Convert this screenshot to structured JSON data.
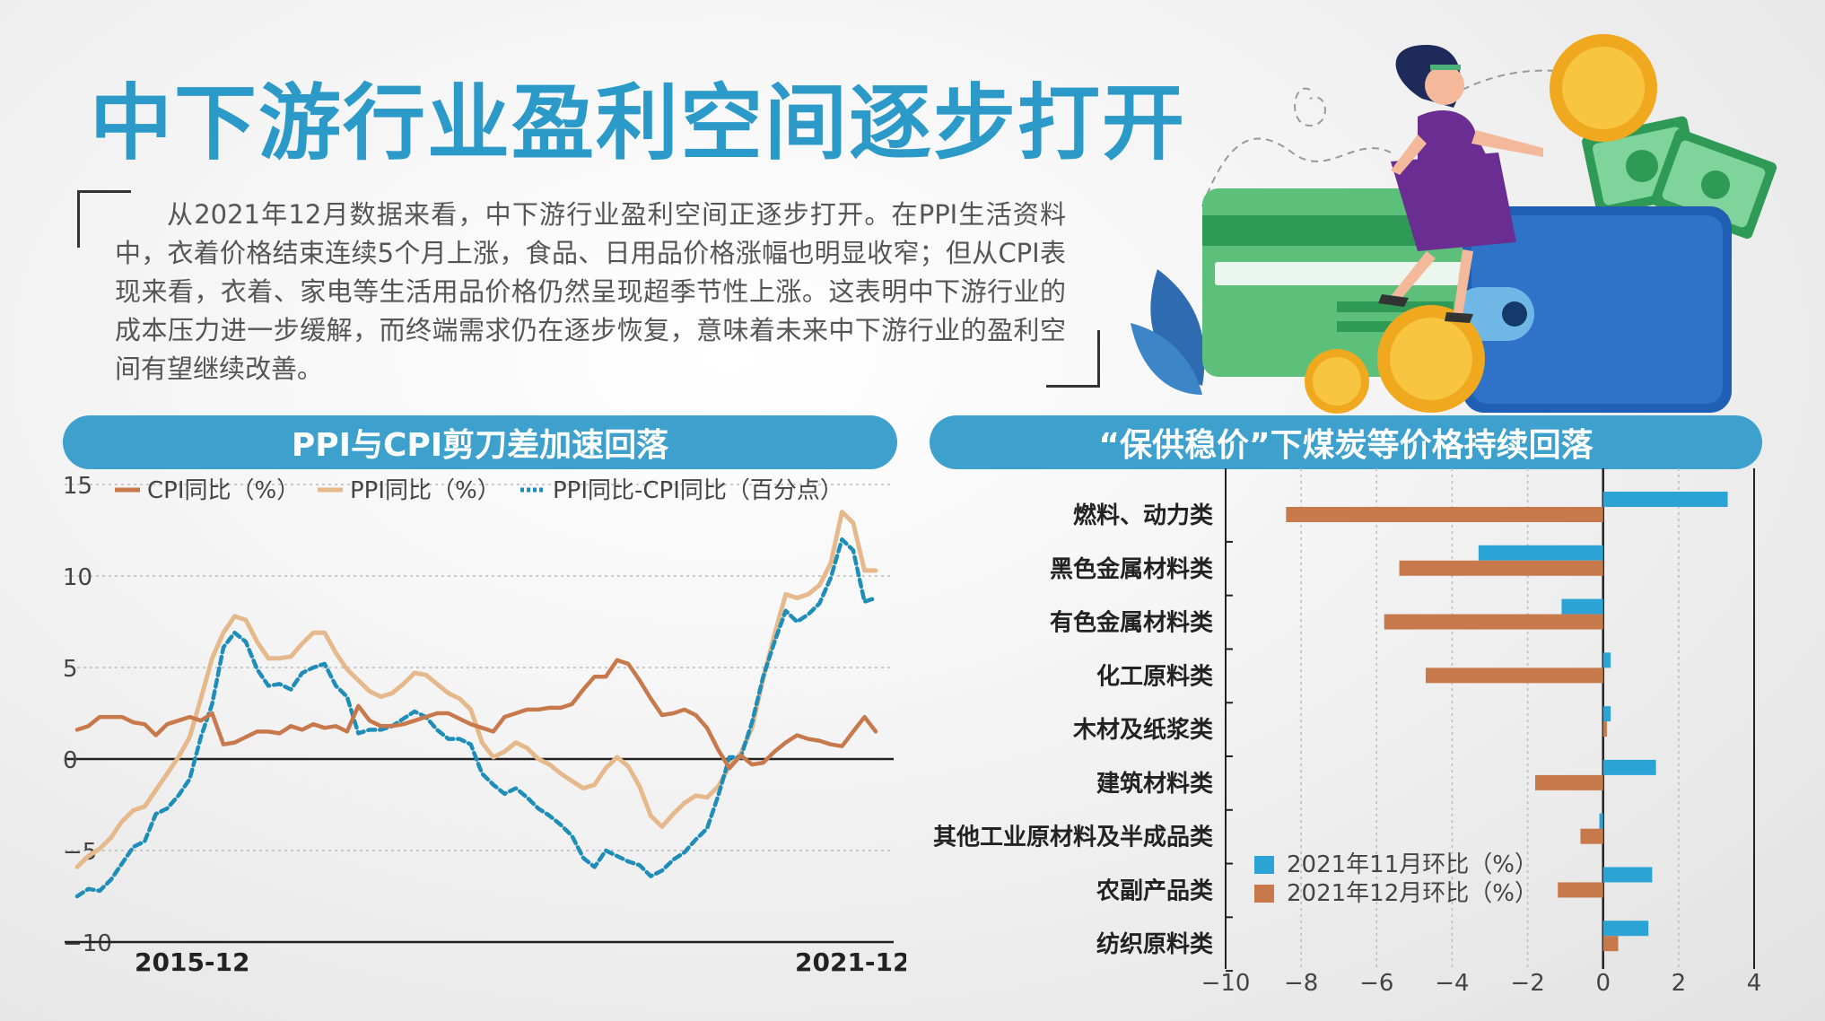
{
  "title": "中下游行业盈利空间逐步打开",
  "intro": "从2021年12月数据来看，中下游行业盈利空间正逐步打开。在PPI生活资料中，衣着价格结束连续5个月上涨，食品、日用品价格涨幅也明显收窄；但从CPI表现来看，衣着、家电等生活用品价格仍然呈现超季节性上涨。这表明中下游行业的成本压力进一步缓解，而终端需求仍在逐步恢复，意味着未来中下游行业的盈利空间有望继续改善。",
  "left_panel": {
    "title": "PPI与CPI剪刀差加速回落"
  },
  "right_panel": {
    "title": "“保供稳价”下煤炭等价格持续回落"
  },
  "colors": {
    "cpi": "#c8794b",
    "ppi": "#e6b98c",
    "diff": "#1e8db8",
    "nov": "#2ba3d4",
    "dec": "#c8794b",
    "accent": "#3ea1cd"
  },
  "chart_data": [
    {
      "type": "line",
      "title": "PPI与CPI剪刀差加速回落",
      "x_start_label": "2015-12",
      "x_end_label": "2021-12",
      "ylim": [
        -10,
        15
      ],
      "yticks": [
        15,
        10,
        5,
        0,
        -5,
        -10
      ],
      "grid": true,
      "legend_position": "top",
      "series": [
        {
          "name": "CPI同比（%）",
          "style": "solid",
          "values": [
            1.6,
            1.8,
            2.3,
            2.3,
            2.3,
            2.0,
            1.9,
            1.3,
            1.9,
            2.1,
            2.3,
            2.1,
            2.5,
            0.8,
            0.9,
            1.2,
            1.5,
            1.5,
            1.4,
            1.8,
            1.6,
            1.9,
            1.7,
            1.8,
            1.5,
            2.9,
            2.1,
            1.8,
            1.8,
            1.9,
            2.1,
            2.3,
            2.5,
            2.5,
            2.2,
            1.9,
            1.7,
            1.5,
            2.3,
            2.5,
            2.7,
            2.7,
            2.8,
            2.8,
            3.0,
            3.8,
            4.5,
            4.5,
            5.4,
            5.2,
            4.3,
            3.3,
            2.4,
            2.5,
            2.7,
            2.4,
            1.7,
            0.5,
            -0.5,
            0.2,
            -0.3,
            -0.2,
            0.4,
            0.9,
            1.3,
            1.1,
            1.0,
            0.8,
            0.7,
            1.5,
            2.3,
            1.5
          ]
        },
        {
          "name": "PPI同比（%）",
          "style": "solid",
          "values": [
            -5.9,
            -5.3,
            -4.9,
            -4.3,
            -3.4,
            -2.8,
            -2.6,
            -1.7,
            -0.8,
            0.1,
            1.2,
            3.3,
            5.5,
            6.9,
            7.8,
            7.6,
            6.4,
            5.5,
            5.5,
            5.6,
            6.3,
            6.9,
            6.9,
            5.8,
            4.9,
            4.3,
            3.7,
            3.4,
            3.6,
            4.1,
            4.7,
            4.6,
            4.1,
            3.6,
            3.3,
            2.7,
            0.9,
            0.1,
            0.4,
            0.9,
            0.6,
            0.0,
            -0.3,
            -0.8,
            -1.2,
            -1.6,
            -1.4,
            -0.5,
            0.1,
            -0.4,
            -1.5,
            -3.1,
            -3.7,
            -3.0,
            -2.4,
            -2.0,
            -2.1,
            -1.5,
            -0.4,
            0.3,
            1.7,
            4.4,
            6.8,
            9.0,
            8.8,
            9.0,
            9.5,
            10.7,
            13.5,
            12.9,
            10.3,
            10.3
          ]
        },
        {
          "name": "PPI同比-CPI同比（百分点）",
          "style": "dashed",
          "values": [
            -7.5,
            -7.1,
            -7.2,
            -6.6,
            -5.7,
            -4.8,
            -4.5,
            -3.0,
            -2.7,
            -2.0,
            -1.1,
            1.2,
            3.0,
            6.1,
            6.9,
            6.4,
            4.9,
            4.0,
            4.1,
            3.8,
            4.7,
            5.0,
            5.2,
            4.0,
            3.4,
            1.4,
            1.6,
            1.6,
            1.8,
            2.2,
            2.6,
            2.3,
            1.6,
            1.1,
            1.1,
            0.8,
            -0.8,
            -1.4,
            -1.9,
            -1.6,
            -2.1,
            -2.7,
            -3.1,
            -3.6,
            -4.2,
            -5.4,
            -5.9,
            -5.0,
            -5.3,
            -5.6,
            -5.8,
            -6.4,
            -6.1,
            -5.5,
            -5.1,
            -4.4,
            -3.8,
            -2.0,
            0.1,
            0.1,
            2.0,
            4.5,
            6.4,
            8.1,
            7.5,
            7.9,
            8.5,
            9.9,
            12.0,
            11.4,
            8.6,
            8.8
          ]
        }
      ]
    },
    {
      "type": "bar",
      "orientation": "horizontal",
      "title": "“保供稳价”下煤炭等价格持续回落",
      "categories": [
        "燃料、动力类",
        "黑色金属材料类",
        "有色金属材料类",
        "化工原料类",
        "木材及纸浆类",
        "建筑材料类",
        "其他工业原材料及半成品类",
        "农副产品类",
        "纺织原料类"
      ],
      "xlim": [
        -10,
        4
      ],
      "xticks": [
        -10,
        -8,
        -6,
        -4,
        -2,
        0,
        2,
        4
      ],
      "grid": true,
      "legend_position": "bottom-right",
      "series": [
        {
          "name": "2021年11月环比（%）",
          "values": [
            3.3,
            -3.3,
            -1.1,
            0.2,
            0.2,
            1.4,
            -0.1,
            1.3,
            1.2
          ]
        },
        {
          "name": "2021年12月环比（%）",
          "values": [
            -8.4,
            -5.4,
            -5.8,
            -4.7,
            0.1,
            -1.8,
            -0.6,
            -1.2,
            0.4
          ]
        }
      ]
    }
  ]
}
